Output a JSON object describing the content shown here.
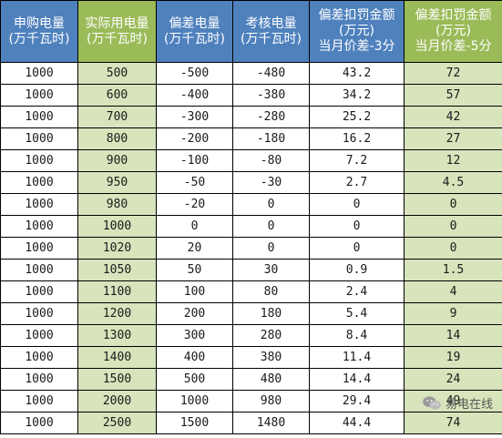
{
  "table": {
    "headers": [
      [
        "申购电量",
        "(万千瓦时)"
      ],
      [
        "实际用电量",
        "(万千瓦时)"
      ],
      [
        "偏差电量",
        "(万千瓦时)"
      ],
      [
        "考核电量",
        "(万千瓦时)"
      ],
      [
        "偏差扣罚金额",
        "(万元)",
        "当月价差-3分"
      ],
      [
        "偏差扣罚金额",
        "(万元)",
        "当月价差-5分"
      ]
    ],
    "rows": [
      [
        "1000",
        "500",
        "-500",
        "-480",
        "43.2",
        "72"
      ],
      [
        "1000",
        "600",
        "-400",
        "-380",
        "34.2",
        "57"
      ],
      [
        "1000",
        "700",
        "-300",
        "-280",
        "25.2",
        "42"
      ],
      [
        "1000",
        "800",
        "-200",
        "-180",
        "16.2",
        "27"
      ],
      [
        "1000",
        "900",
        "-100",
        "-80",
        "7.2",
        "12"
      ],
      [
        "1000",
        "950",
        "-50",
        "-30",
        "2.7",
        "4.5"
      ],
      [
        "1000",
        "980",
        "-20",
        "0",
        "0",
        "0"
      ],
      [
        "1000",
        "1000",
        "0",
        "0",
        "0",
        "0"
      ],
      [
        "1000",
        "1020",
        "20",
        "0",
        "0",
        "0"
      ],
      [
        "1000",
        "1050",
        "50",
        "30",
        "0.9",
        "1.5"
      ],
      [
        "1000",
        "1100",
        "100",
        "80",
        "2.4",
        "4"
      ],
      [
        "1000",
        "1200",
        "200",
        "180",
        "5.4",
        "9"
      ],
      [
        "1000",
        "1300",
        "300",
        "280",
        "8.4",
        "14"
      ],
      [
        "1000",
        "1400",
        "400",
        "380",
        "11.4",
        "19"
      ],
      [
        "1000",
        "1500",
        "500",
        "480",
        "14.4",
        "24"
      ],
      [
        "1000",
        "2000",
        "1000",
        "980",
        "29.4",
        "49"
      ],
      [
        "1000",
        "2500",
        "1500",
        "1480",
        "44.4",
        "74"
      ]
    ]
  },
  "watermark": {
    "text": "易电在线",
    "icon": "wechat-icon"
  },
  "colors": {
    "header_blue": "#4f81bd",
    "header_green": "#9bbb59",
    "cell_green": "#d8e4bc",
    "cell_white": "#ffffff",
    "grid_line": "#000000"
  }
}
